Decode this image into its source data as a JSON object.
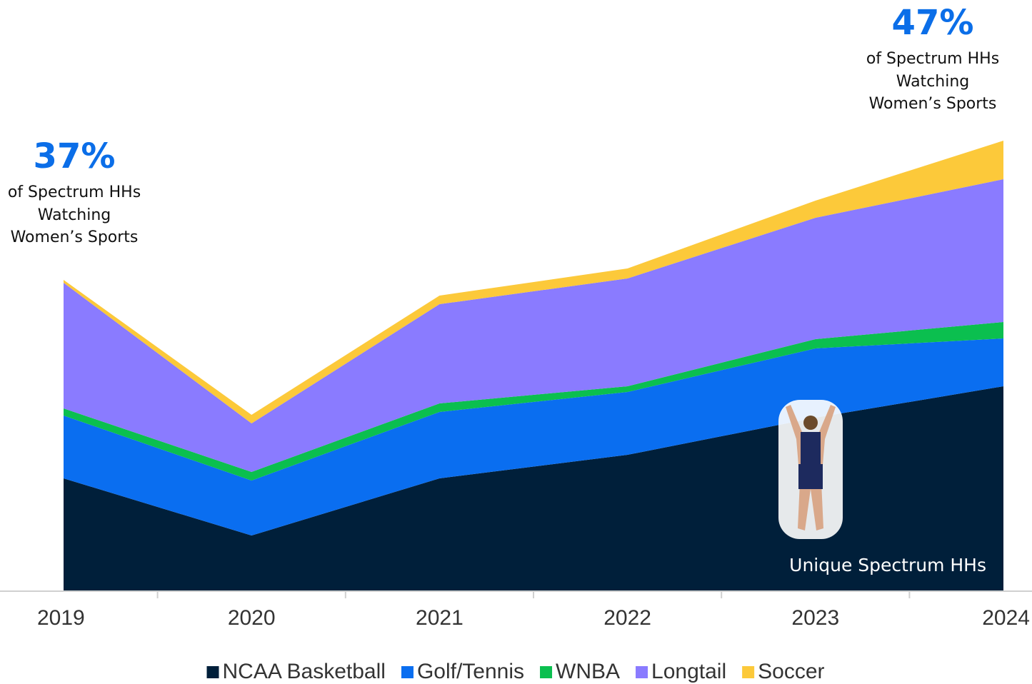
{
  "chart_data": {
    "type": "stacked-area",
    "categories": [
      "2019",
      "2020",
      "2021",
      "2022",
      "2023",
      "2024"
    ],
    "series": [
      {
        "name": "NCAA Basketball",
        "color": "#001f3a",
        "values": [
          158,
          78,
          158,
          191,
          243,
          287
        ]
      },
      {
        "name": "Golf/Tennis",
        "color": "#0a6ef0",
        "values": [
          88,
          77,
          93,
          88,
          97,
          67
        ]
      },
      {
        "name": "WNBA",
        "color": "#0bbf4f",
        "values": [
          10,
          12,
          12,
          8,
          13,
          23
        ]
      },
      {
        "name": "Longtail",
        "color": "#8a7bff",
        "values": [
          176,
          68,
          139,
          151,
          170,
          200
        ]
      },
      {
        "name": "Soccer",
        "color": "#fcc93a",
        "values": [
          4,
          12,
          12,
          14,
          24,
          54
        ]
      }
    ],
    "ylim": [
      0,
      640
    ],
    "annotations": [
      {
        "big": "37%",
        "lines": [
          "of Spectrum HHs",
          "Watching",
          "Women’s Sports"
        ]
      },
      {
        "big": "47%",
        "lines": [
          "of Spectrum HHs",
          "Watching",
          "Women’s Sports"
        ]
      }
    ],
    "inner_label": "Unique Spectrum HHs"
  }
}
